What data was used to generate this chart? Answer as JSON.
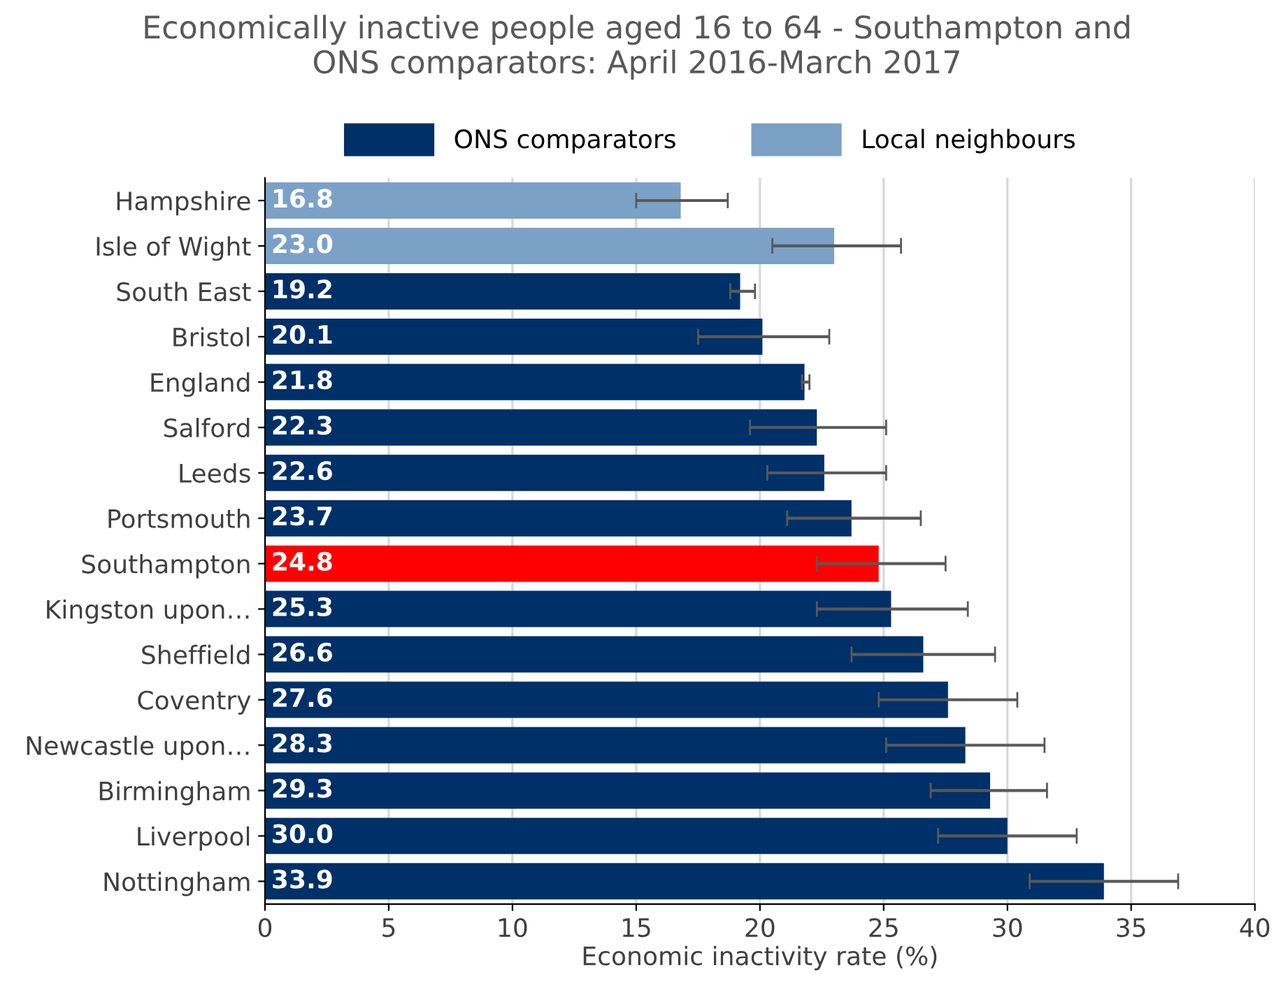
{
  "chart_data": {
    "type": "bar",
    "orientation": "horizontal",
    "title": "Economically inactive people aged 16 to 64 - Southampton and\nONS comparators: April 2016-March 2017",
    "xlabel": "Economic inactivity rate (%)",
    "categories": [
      "Hampshire",
      "Isle of Wight",
      "South East",
      "Bristol",
      "England",
      "Salford",
      "Leeds",
      "Portsmouth",
      "Southampton",
      "Kingston upon…",
      "Sheffield",
      "Coventry",
      "Newcastle upon…",
      "Birmingham",
      "Liverpool",
      "Nottingham"
    ],
    "series": [
      {
        "name": "ONS comparators",
        "color": "#003068",
        "colors": [
          null,
          null,
          "#003068",
          "#003068",
          "#003068",
          "#003068",
          "#003068",
          "#003068",
          "#ff0000",
          "#003068",
          "#003068",
          "#003068",
          "#003068",
          "#003068",
          "#003068",
          "#003068"
        ],
        "value_labels": [
          null,
          null,
          "19.2",
          "20.1",
          "21.8",
          "22.3",
          "22.6",
          "23.7",
          "24.8",
          "25.3",
          "26.6",
          "27.6",
          "28.3",
          "29.3",
          "30.0",
          "33.9"
        ],
        "values": [
          null,
          null,
          19.2,
          20.1,
          21.8,
          22.3,
          22.6,
          23.7,
          24.8,
          25.3,
          26.6,
          27.6,
          28.3,
          29.3,
          30.0,
          33.9
        ],
        "errors": [
          null,
          null,
          [
            18.8,
            19.8
          ],
          [
            17.5,
            22.8
          ],
          [
            21.7,
            22.0
          ],
          [
            19.6,
            25.1
          ],
          [
            20.3,
            25.1
          ],
          [
            21.1,
            26.5
          ],
          [
            22.3,
            27.5
          ],
          [
            22.3,
            28.4
          ],
          [
            23.7,
            29.5
          ],
          [
            24.8,
            30.4
          ],
          [
            25.1,
            31.5
          ],
          [
            26.9,
            31.6
          ],
          [
            27.2,
            32.8
          ],
          [
            30.9,
            36.9
          ]
        ]
      },
      {
        "name": "Local neighbours",
        "color": "#7ba1c7",
        "value_labels": [
          "16.8",
          "23.0",
          null,
          null,
          null,
          null,
          null,
          null,
          null,
          null,
          null,
          null,
          null,
          null,
          null,
          null
        ],
        "values": [
          16.8,
          23.0,
          null,
          null,
          null,
          null,
          null,
          null,
          null,
          null,
          null,
          null,
          null,
          null,
          null,
          null
        ],
        "errors": [
          [
            15.0,
            18.7
          ],
          [
            20.5,
            25.7
          ],
          null,
          null,
          null,
          null,
          null,
          null,
          null,
          null,
          null,
          null,
          null,
          null,
          null,
          null
        ]
      }
    ],
    "xlim": [
      0,
      40
    ],
    "xticks": [
      0,
      5,
      10,
      15,
      20,
      25,
      30,
      35,
      40
    ],
    "grid": "x",
    "legend": "top"
  }
}
